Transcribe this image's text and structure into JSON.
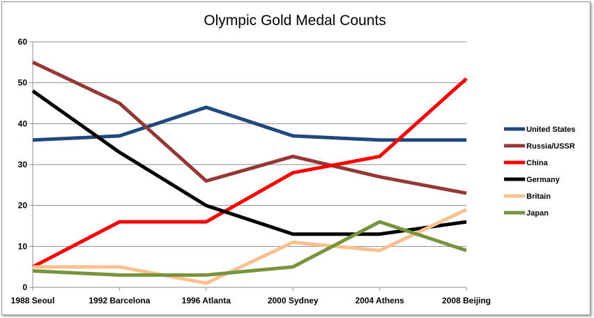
{
  "chart_data": {
    "type": "line",
    "title": "Olympic Gold Medal Counts",
    "xlabel": "",
    "ylabel": "",
    "categories": [
      "1988 Seoul",
      "1992 Barcelona",
      "1996 Atlanta",
      "2000 Sydney",
      "2004 Athens",
      "2008 Beijing"
    ],
    "ylim": [
      0,
      60
    ],
    "yticks": [
      0,
      10,
      20,
      30,
      40,
      50,
      60
    ],
    "grid": true,
    "legend_position": "right",
    "series": [
      {
        "name": "United States",
        "color": "#1f497d",
        "values": [
          36,
          37,
          44,
          37,
          36,
          36
        ]
      },
      {
        "name": "Russia/USSR",
        "color": "#953735",
        "values": [
          55,
          45,
          26,
          32,
          27,
          23
        ]
      },
      {
        "name": "China",
        "color": "#ff0000",
        "values": [
          5,
          16,
          16,
          28,
          32,
          51
        ]
      },
      {
        "name": "Germany",
        "color": "#000000",
        "values": [
          48,
          33,
          20,
          13,
          13,
          16
        ]
      },
      {
        "name": "Britain",
        "color": "#fac090",
        "values": [
          5,
          5,
          1,
          11,
          9,
          19
        ]
      },
      {
        "name": "Japan",
        "color": "#77933c",
        "values": [
          4,
          3,
          3,
          5,
          16,
          9
        ]
      }
    ]
  }
}
